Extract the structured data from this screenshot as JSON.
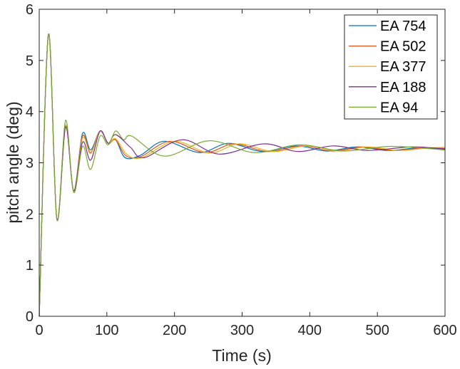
{
  "chart_data": {
    "type": "line",
    "title": "",
    "xlabel": "Time (s)",
    "ylabel": "pitch angle (deg)",
    "xlim": [
      0,
      600
    ],
    "ylim": [
      0,
      6
    ],
    "xticks": [
      0,
      100,
      200,
      300,
      400,
      500,
      600
    ],
    "yticks": [
      0,
      1,
      2,
      3,
      4,
      5,
      6
    ],
    "grid": false,
    "legend_placement": "top-right",
    "series": [
      {
        "name": "EA 754",
        "color": "#0072BD",
        "points": [
          [
            0,
            0
          ],
          [
            13.5,
            5.5
          ],
          [
            26,
            1.9
          ],
          [
            39,
            3.73
          ],
          [
            51,
            2.45
          ],
          [
            64,
            3.57
          ],
          [
            76,
            3.25
          ],
          [
            90,
            3.62
          ],
          [
            102,
            3.38
          ],
          [
            113,
            3.45
          ],
          [
            127,
            3.1
          ],
          [
            150,
            3.15
          ],
          [
            185,
            3.42
          ],
          [
            237,
            3.2
          ],
          [
            280,
            3.38
          ],
          [
            330,
            3.22
          ],
          [
            380,
            3.33
          ],
          [
            425,
            3.23
          ],
          [
            470,
            3.31
          ],
          [
            515,
            3.24
          ],
          [
            560,
            3.29
          ],
          [
            600,
            3.26
          ]
        ]
      },
      {
        "name": "EA 502",
        "color": "#D95319",
        "points": [
          [
            0,
            0
          ],
          [
            13.5,
            5.5
          ],
          [
            26,
            1.9
          ],
          [
            39,
            3.73
          ],
          [
            51,
            2.45
          ],
          [
            64,
            3.52
          ],
          [
            76,
            3.2
          ],
          [
            90,
            3.62
          ],
          [
            102,
            3.38
          ],
          [
            113,
            3.45
          ],
          [
            128,
            3.14
          ],
          [
            150,
            3.12
          ],
          [
            193,
            3.42
          ],
          [
            245,
            3.2
          ],
          [
            288,
            3.37
          ],
          [
            338,
            3.22
          ],
          [
            388,
            3.33
          ],
          [
            433,
            3.23
          ],
          [
            478,
            3.31
          ],
          [
            523,
            3.24
          ],
          [
            568,
            3.29
          ],
          [
            600,
            3.28
          ]
        ]
      },
      {
        "name": "EA 377",
        "color": "#EDB120",
        "points": [
          [
            0,
            0
          ],
          [
            13.5,
            5.5
          ],
          [
            26,
            1.9
          ],
          [
            39,
            3.73
          ],
          [
            51,
            2.45
          ],
          [
            64,
            3.48
          ],
          [
            76,
            3.18
          ],
          [
            90,
            3.62
          ],
          [
            102,
            3.38
          ],
          [
            113,
            3.47
          ],
          [
            130,
            3.16
          ],
          [
            152,
            3.1
          ],
          [
            200,
            3.42
          ],
          [
            252,
            3.19
          ],
          [
            296,
            3.37
          ],
          [
            346,
            3.22
          ],
          [
            396,
            3.33
          ],
          [
            441,
            3.23
          ],
          [
            486,
            3.31
          ],
          [
            531,
            3.24
          ],
          [
            576,
            3.29
          ],
          [
            600,
            3.3
          ]
        ]
      },
      {
        "name": "EA 188",
        "color": "#7E2F8E",
        "points": [
          [
            0,
            0
          ],
          [
            13.5,
            5.5
          ],
          [
            26,
            1.9
          ],
          [
            39,
            3.7
          ],
          [
            51,
            2.45
          ],
          [
            64,
            3.4
          ],
          [
            76,
            3.05
          ],
          [
            90,
            3.62
          ],
          [
            102,
            3.38
          ],
          [
            113,
            3.55
          ],
          [
            135,
            3.3
          ],
          [
            155,
            3.1
          ],
          [
            211,
            3.45
          ],
          [
            266,
            3.17
          ],
          [
            332,
            3.37
          ],
          [
            382,
            3.22
          ],
          [
            435,
            3.33
          ],
          [
            485,
            3.24
          ],
          [
            550,
            3.31
          ],
          [
            600,
            3.27
          ]
        ]
      },
      {
        "name": "EA 94",
        "color": "#77AC30",
        "points": [
          [
            0,
            0
          ],
          [
            13.5,
            5.5
          ],
          [
            26,
            1.9
          ],
          [
            39,
            3.83
          ],
          [
            51,
            2.42
          ],
          [
            64,
            3.32
          ],
          [
            76,
            2.87
          ],
          [
            90,
            3.52
          ],
          [
            102,
            3.35
          ],
          [
            113,
            3.62
          ],
          [
            125,
            3.45
          ],
          [
            137,
            3.52
          ],
          [
            185,
            3.13
          ],
          [
            251,
            3.43
          ],
          [
            318,
            3.2
          ],
          [
            385,
            3.35
          ],
          [
            450,
            3.23
          ],
          [
            520,
            3.32
          ],
          [
            600,
            3.25
          ]
        ]
      }
    ]
  }
}
